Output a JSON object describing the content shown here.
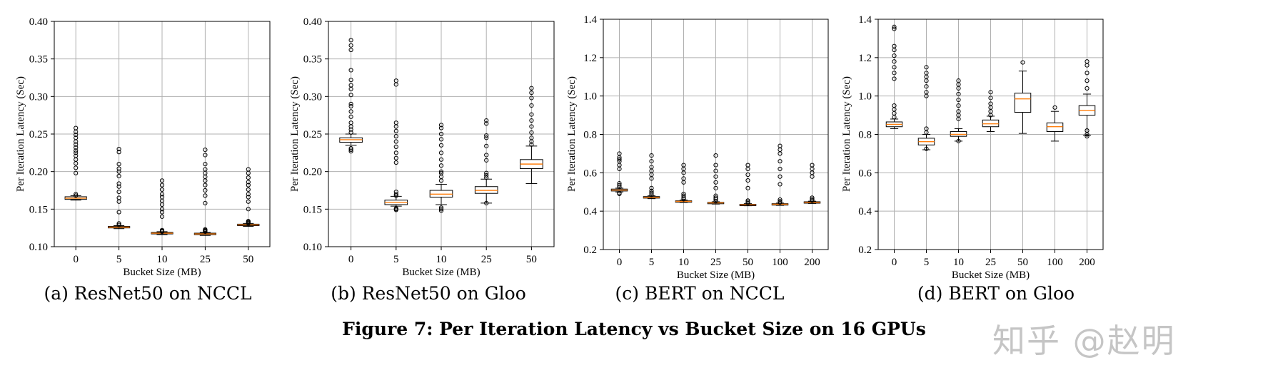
{
  "figure_title": "Figure 7: Per Iteration Latency vs Bucket Size on 16 GPUs",
  "watermark": "知乎 @赵明",
  "colors": {
    "box_edge": "#000000",
    "median": "#ff7f0e",
    "grid": "#b0b0b0",
    "flier": "#000000"
  },
  "chart_data": [
    {
      "type": "box",
      "caption": "(a) ResNet50 on NCCL",
      "xlabel": "Bucket Size (MB)",
      "ylabel": "Per Iteration Latency (Sec)",
      "ylim": [
        0.1,
        0.4
      ],
      "yticks": [
        "0.10",
        "0.15",
        "0.20",
        "0.25",
        "0.30",
        "0.35",
        "0.40"
      ],
      "grid": true,
      "categories": [
        "0",
        "5",
        "10",
        "25",
        "50"
      ],
      "boxes": [
        {
          "whislo": 0.162,
          "q1": 0.163,
          "med": 0.1645,
          "q3": 0.1665,
          "whishi": 0.168,
          "fliers": [
            0.168,
            0.17,
            0.198,
            0.205,
            0.211,
            0.216,
            0.221,
            0.225,
            0.228,
            0.232,
            0.236,
            0.24,
            0.245,
            0.249,
            0.253,
            0.258
          ]
        },
        {
          "whislo": 0.124,
          "q1": 0.125,
          "med": 0.126,
          "q3": 0.127,
          "whishi": 0.128,
          "fliers": [
            0.129,
            0.131,
            0.146,
            0.16,
            0.165,
            0.173,
            0.18,
            0.184,
            0.194,
            0.2,
            0.204,
            0.21,
            0.226,
            0.23
          ]
        },
        {
          "whislo": 0.116,
          "q1": 0.117,
          "med": 0.118,
          "q3": 0.119,
          "whishi": 0.12,
          "fliers": [
            0.12,
            0.121,
            0.122,
            0.14,
            0.146,
            0.15,
            0.156,
            0.161,
            0.166,
            0.17,
            0.176,
            0.182,
            0.188
          ]
        },
        {
          "whislo": 0.115,
          "q1": 0.116,
          "med": 0.117,
          "q3": 0.118,
          "whishi": 0.119,
          "fliers": [
            0.12,
            0.121,
            0.122,
            0.123,
            0.158,
            0.168,
            0.175,
            0.182,
            0.188,
            0.193,
            0.198,
            0.203,
            0.21,
            0.222,
            0.229
          ]
        },
        {
          "whislo": 0.127,
          "q1": 0.128,
          "med": 0.129,
          "q3": 0.13,
          "whishi": 0.131,
          "fliers": [
            0.131,
            0.132,
            0.133,
            0.134,
            0.15,
            0.16,
            0.166,
            0.17,
            0.176,
            0.182,
            0.186,
            0.192,
            0.198,
            0.203
          ]
        }
      ]
    },
    {
      "type": "box",
      "caption": "(b) ResNet50 on Gloo",
      "xlabel": "Bucket Size (MB)",
      "ylabel": "Per Iteration Latency (Sec)",
      "ylim": [
        0.1,
        0.4
      ],
      "yticks": [
        "0.10",
        "0.15",
        "0.20",
        "0.25",
        "0.30",
        "0.35",
        "0.40"
      ],
      "grid": true,
      "categories": [
        "0",
        "5",
        "10",
        "25",
        "50"
      ],
      "boxes": [
        {
          "whislo": 0.235,
          "q1": 0.239,
          "med": 0.2425,
          "q3": 0.245,
          "whishi": 0.25,
          "fliers": [
            0.227,
            0.229,
            0.231,
            0.252,
            0.256,
            0.26,
            0.265,
            0.273,
            0.28,
            0.287,
            0.29,
            0.302,
            0.31,
            0.315,
            0.322,
            0.335,
            0.362,
            0.368,
            0.375
          ]
        },
        {
          "whislo": 0.154,
          "q1": 0.156,
          "med": 0.159,
          "q3": 0.162,
          "whishi": 0.167,
          "fliers": [
            0.149,
            0.15,
            0.151,
            0.168,
            0.17,
            0.173,
            0.212,
            0.218,
            0.225,
            0.233,
            0.24,
            0.247,
            0.254,
            0.26,
            0.265,
            0.316,
            0.321
          ]
        },
        {
          "whislo": 0.156,
          "q1": 0.166,
          "med": 0.17,
          "q3": 0.175,
          "whishi": 0.183,
          "fliers": [
            0.148,
            0.15,
            0.152,
            0.188,
            0.193,
            0.198,
            0.2,
            0.208,
            0.216,
            0.225,
            0.235,
            0.243,
            0.25,
            0.258,
            0.262
          ]
        },
        {
          "whislo": 0.158,
          "q1": 0.171,
          "med": 0.175,
          "q3": 0.18,
          "whishi": 0.19,
          "fliers": [
            0.158,
            0.192,
            0.195,
            0.198,
            0.215,
            0.222,
            0.234,
            0.245,
            0.248,
            0.264,
            0.268
          ]
        },
        {
          "whislo": 0.184,
          "q1": 0.204,
          "med": 0.21,
          "q3": 0.216,
          "whishi": 0.234,
          "fliers": [
            0.236,
            0.24,
            0.245,
            0.252,
            0.26,
            0.268,
            0.276,
            0.288,
            0.298,
            0.305,
            0.311
          ]
        }
      ]
    },
    {
      "type": "box",
      "caption": "(c) BERT on NCCL",
      "xlabel": "Bucket Size (MB)",
      "ylabel": "Per Iteration Latency (Sec)",
      "ylim": [
        0.2,
        1.4
      ],
      "yticks": [
        "0.2",
        "0.4",
        "0.6",
        "0.8",
        "1.0",
        "1.2",
        "1.4"
      ],
      "grid": true,
      "categories": [
        "0",
        "5",
        "10",
        "25",
        "50",
        "100",
        "200"
      ],
      "boxes": [
        {
          "whislo": 0.5,
          "q1": 0.505,
          "med": 0.51,
          "q3": 0.515,
          "whishi": 0.52,
          "fliers": [
            0.49,
            0.495,
            0.525,
            0.535,
            0.545,
            0.62,
            0.64,
            0.66,
            0.67,
            0.68,
            0.7
          ]
        },
        {
          "whislo": 0.465,
          "q1": 0.468,
          "med": 0.472,
          "q3": 0.476,
          "whishi": 0.48,
          "fliers": [
            0.485,
            0.495,
            0.505,
            0.52,
            0.57,
            0.59,
            0.61,
            0.63,
            0.66,
            0.69
          ]
        },
        {
          "whislo": 0.445,
          "q1": 0.448,
          "med": 0.451,
          "q3": 0.454,
          "whishi": 0.458,
          "fliers": [
            0.462,
            0.47,
            0.48,
            0.49,
            0.55,
            0.57,
            0.6,
            0.62,
            0.64
          ]
        },
        {
          "whislo": 0.437,
          "q1": 0.44,
          "med": 0.443,
          "q3": 0.446,
          "whishi": 0.449,
          "fliers": [
            0.452,
            0.462,
            0.47,
            0.48,
            0.52,
            0.55,
            0.58,
            0.61,
            0.64,
            0.69
          ]
        },
        {
          "whislo": 0.428,
          "q1": 0.431,
          "med": 0.433,
          "q3": 0.436,
          "whishi": 0.439,
          "fliers": [
            0.442,
            0.448,
            0.455,
            0.52,
            0.56,
            0.59,
            0.62,
            0.64
          ]
        },
        {
          "whislo": 0.43,
          "q1": 0.433,
          "med": 0.436,
          "q3": 0.439,
          "whishi": 0.442,
          "fliers": [
            0.446,
            0.452,
            0.46,
            0.54,
            0.58,
            0.62,
            0.66,
            0.7,
            0.72,
            0.74
          ]
        },
        {
          "whislo": 0.44,
          "q1": 0.443,
          "med": 0.446,
          "q3": 0.449,
          "whishi": 0.452,
          "fliers": [
            0.456,
            0.462,
            0.47,
            0.58,
            0.6,
            0.62,
            0.64
          ]
        }
      ]
    },
    {
      "type": "box",
      "caption": "(d) BERT on Gloo",
      "xlabel": "Bucket Size (MB)",
      "ylabel": "Per Iteration Latency (Sec)",
      "ylim": [
        0.2,
        1.4
      ],
      "yticks": [
        "0.2",
        "0.4",
        "0.6",
        "0.8",
        "1.0",
        "1.2",
        "1.4"
      ],
      "grid": true,
      "categories": [
        "0",
        "5",
        "10",
        "25",
        "50",
        "100",
        "200"
      ],
      "boxes": [
        {
          "whislo": 0.83,
          "q1": 0.84,
          "med": 0.852,
          "q3": 0.865,
          "whishi": 0.88,
          "fliers": [
            0.89,
            0.91,
            0.93,
            0.95,
            1.09,
            1.12,
            1.15,
            1.18,
            1.21,
            1.24,
            1.26,
            1.35,
            1.36
          ]
        },
        {
          "whislo": 0.72,
          "q1": 0.745,
          "med": 0.762,
          "q3": 0.78,
          "whishi": 0.8,
          "fliers": [
            0.725,
            0.81,
            0.83,
            1.0,
            1.02,
            1.05,
            1.08,
            1.1,
            1.12,
            1.15
          ]
        },
        {
          "whislo": 0.765,
          "q1": 0.79,
          "med": 0.8,
          "q3": 0.815,
          "whishi": 0.83,
          "fliers": [
            0.765,
            0.88,
            0.9,
            0.92,
            0.95,
            0.98,
            1.01,
            1.04,
            1.06,
            1.08
          ]
        },
        {
          "whislo": 0.815,
          "q1": 0.84,
          "med": 0.855,
          "q3": 0.875,
          "whishi": 0.895,
          "fliers": [
            0.9,
            0.92,
            0.94,
            0.96,
            0.99,
            1.02
          ]
        },
        {
          "whislo": 0.805,
          "q1": 0.915,
          "med": 0.985,
          "q3": 1.015,
          "whishi": 1.13,
          "fliers": [
            1.175
          ]
        },
        {
          "whislo": 0.765,
          "q1": 0.815,
          "med": 0.84,
          "q3": 0.86,
          "whishi": 0.92,
          "fliers": [
            0.94
          ]
        },
        {
          "whislo": 0.795,
          "q1": 0.9,
          "med": 0.925,
          "q3": 0.95,
          "whishi": 1.01,
          "fliers": [
            0.79,
            0.8,
            0.82,
            1.04,
            1.08,
            1.12,
            1.16,
            1.18
          ]
        }
      ]
    }
  ]
}
